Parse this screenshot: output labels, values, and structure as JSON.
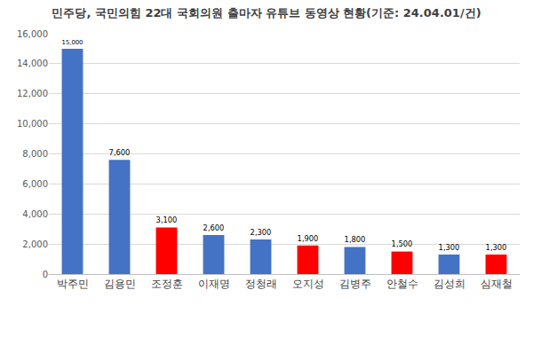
{
  "chart_data": {
    "type": "bar",
    "title": "민주당, 국민의힘 22대 국회의원 출마자 유튜브 동영상 현황(기준: 24.04.01/건)",
    "categories": [
      "박주민",
      "김용민",
      "조정훈",
      "이재명",
      "정청래",
      "오지성",
      "김병주",
      "안철수",
      "김성희",
      "심재철"
    ],
    "values": [
      15000,
      7600,
      3100,
      2600,
      2300,
      1900,
      1800,
      1500,
      1300,
      1300
    ],
    "value_labels": [
      "15,000",
      "7,600",
      "3,100",
      "2,600",
      "2,300",
      "1,900",
      "1,800",
      "1,500",
      "1,300",
      "1,300"
    ],
    "colors": [
      "#4472c4",
      "#4472c4",
      "#ff0000",
      "#4472c4",
      "#4472c4",
      "#ff0000",
      "#4472c4",
      "#ff0000",
      "#4472c4",
      "#ff0000"
    ],
    "ylim": [
      0,
      16000
    ],
    "yticks": [
      0,
      {
        "value": 2000,
        "label": "2,000"
      },
      {
        "value": 4000,
        "label": "4,000"
      },
      {
        "value": 6000,
        "label": "6,000"
      },
      {
        "value": 8000,
        "label": "8,000"
      },
      {
        "value": 10000,
        "label": "10,000"
      },
      {
        "value": 12000,
        "label": "12,000"
      },
      {
        "value": 14000,
        "label": "14,000"
      },
      {
        "value": 16000,
        "label": "16,000"
      }
    ],
    "grid": true,
    "data_labels": true
  }
}
